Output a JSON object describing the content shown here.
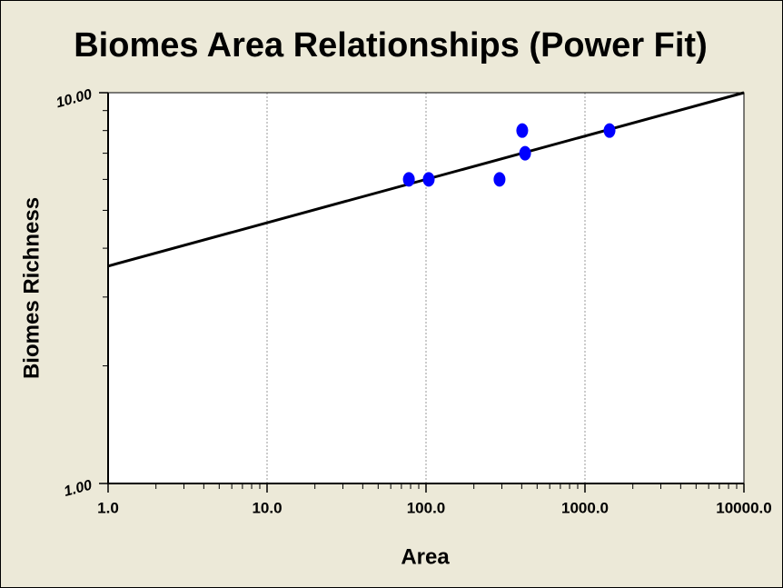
{
  "chart_data": {
    "type": "scatter",
    "title": "Biomes Area Relationships (Power Fit)",
    "x_label": "Area",
    "y_label": "Biomes Richness",
    "x": [
      78,
      104,
      290,
      403,
      420,
      1427
    ],
    "values": [
      6,
      6,
      6,
      8,
      7,
      8
    ],
    "color": "#0000ff",
    "fit_line": {
      "x": [
        1,
        10000
      ],
      "values": [
        3.6,
        10
      ],
      "color": "#000000"
    },
    "xlog": true,
    "ylog": true,
    "xlim": [
      1,
      10000
    ],
    "ylim": [
      1,
      10
    ],
    "xticks": [
      {
        "value": 1,
        "label": "1.0"
      },
      {
        "value": 10,
        "label": "10.0"
      },
      {
        "value": 100,
        "label": "100.0"
      },
      {
        "value": 1000,
        "label": "1000.0"
      },
      {
        "value": 10000,
        "label": "10000.0"
      }
    ],
    "yticks": [
      {
        "value": 1,
        "label": "1.00"
      },
      {
        "value": 10,
        "label": "10.00"
      }
    ],
    "xminorticks": [
      2,
      3,
      4,
      5,
      6,
      7,
      8,
      9,
      20,
      30,
      40,
      50,
      60,
      70,
      80,
      90,
      200,
      300,
      400,
      500,
      600,
      700,
      800,
      900,
      2000,
      3000,
      4000,
      5000,
      6000,
      7000,
      8000,
      9000
    ],
    "yminorticks": [
      2,
      3,
      4,
      5,
      6,
      7,
      8,
      9
    ],
    "xgrid": true
  }
}
